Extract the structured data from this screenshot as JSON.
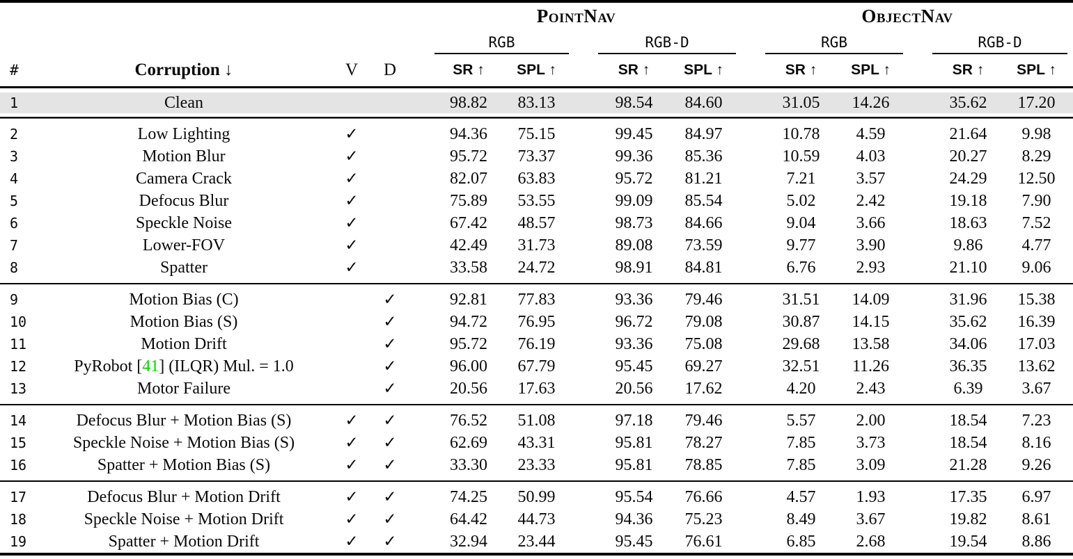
{
  "table": {
    "title_groups": [
      {
        "label": "PointNav",
        "subgroups": [
          {
            "label": "RGB"
          },
          {
            "label": "RGB-D"
          }
        ]
      },
      {
        "label": "ObjectNav",
        "subgroups": [
          {
            "label": "RGB"
          },
          {
            "label": "RGB-D"
          }
        ]
      }
    ],
    "header": {
      "num": "#",
      "corruption": "Corruption ↓",
      "visual": "V",
      "dynamics": "D",
      "metric_sr": "SR ↑",
      "metric_spl": "SPL ↑"
    },
    "check_glyph": "✓",
    "highlight_color": "#e4e4e4",
    "citation_color": "#00d500",
    "sections": [
      {
        "rows": [
          {
            "num": "1",
            "label": "Clean",
            "v": false,
            "d": false,
            "highlight": true,
            "values": [
              "98.82",
              "83.13",
              "98.54",
              "84.60",
              "31.05",
              "14.26",
              "35.62",
              "17.20"
            ]
          }
        ]
      },
      {
        "rows": [
          {
            "num": "2",
            "label": "Low Lighting",
            "v": true,
            "d": false,
            "values": [
              "94.36",
              "75.15",
              "99.45",
              "84.97",
              "10.78",
              "4.59",
              "21.64",
              "9.98"
            ]
          },
          {
            "num": "3",
            "label": "Motion Blur",
            "v": true,
            "d": false,
            "values": [
              "95.72",
              "73.37",
              "99.36",
              "85.36",
              "10.59",
              "4.03",
              "20.27",
              "8.29"
            ]
          },
          {
            "num": "4",
            "label": "Camera Crack",
            "v": true,
            "d": false,
            "values": [
              "82.07",
              "63.83",
              "95.72",
              "81.21",
              "7.21",
              "3.57",
              "24.29",
              "12.50"
            ]
          },
          {
            "num": "5",
            "label": "Defocus Blur",
            "v": true,
            "d": false,
            "values": [
              "75.89",
              "53.55",
              "99.09",
              "85.54",
              "5.02",
              "2.42",
              "19.18",
              "7.90"
            ]
          },
          {
            "num": "6",
            "label": "Speckle Noise",
            "v": true,
            "d": false,
            "values": [
              "67.42",
              "48.57",
              "98.73",
              "84.66",
              "9.04",
              "3.66",
              "18.63",
              "7.52"
            ]
          },
          {
            "num": "7",
            "label": "Lower-FOV",
            "v": true,
            "d": false,
            "values": [
              "42.49",
              "31.73",
              "89.08",
              "73.59",
              "9.77",
              "3.90",
              "9.86",
              "4.77"
            ]
          },
          {
            "num": "8",
            "label": "Spatter",
            "v": true,
            "d": false,
            "values": [
              "33.58",
              "24.72",
              "98.91",
              "84.81",
              "6.76",
              "2.93",
              "21.10",
              "9.06"
            ]
          }
        ]
      },
      {
        "rows": [
          {
            "num": "9",
            "label": "Motion Bias (C)",
            "v": false,
            "d": true,
            "values": [
              "92.81",
              "77.83",
              "93.36",
              "79.46",
              "31.51",
              "14.09",
              "31.96",
              "15.38"
            ]
          },
          {
            "num": "10",
            "label": "Motion Bias (S)",
            "v": false,
            "d": true,
            "values": [
              "94.72",
              "76.95",
              "96.72",
              "79.08",
              "30.87",
              "14.15",
              "35.62",
              "16.39"
            ]
          },
          {
            "num": "11",
            "label": "Motion Drift",
            "v": false,
            "d": true,
            "values": [
              "95.72",
              "76.19",
              "93.36",
              "75.08",
              "29.68",
              "13.58",
              "34.06",
              "17.03"
            ]
          },
          {
            "num": "12",
            "label": "PyRobot [41] (ILQR) Mul. = 1.0",
            "v": false,
            "d": true,
            "label_parts": [
              {
                "text": "PyRobot ["
              },
              {
                "text": "41",
                "green": true
              },
              {
                "text": "] (ILQR) Mul. = 1.0"
              }
            ],
            "values": [
              "96.00",
              "67.79",
              "95.45",
              "69.27",
              "32.51",
              "11.26",
              "36.35",
              "13.62"
            ]
          },
          {
            "num": "13",
            "label": "Motor Failure",
            "v": false,
            "d": true,
            "values": [
              "20.56",
              "17.63",
              "20.56",
              "17.62",
              "4.20",
              "2.43",
              "6.39",
              "3.67"
            ]
          }
        ]
      },
      {
        "rows": [
          {
            "num": "14",
            "label": "Defocus Blur + Motion Bias (S)",
            "v": true,
            "d": true,
            "values": [
              "76.52",
              "51.08",
              "97.18",
              "79.46",
              "5.57",
              "2.00",
              "18.54",
              "7.23"
            ]
          },
          {
            "num": "15",
            "label": "Speckle Noise + Motion Bias (S)",
            "v": true,
            "d": true,
            "values": [
              "62.69",
              "43.31",
              "95.81",
              "78.27",
              "7.85",
              "3.73",
              "18.54",
              "8.16"
            ]
          },
          {
            "num": "16",
            "label": "Spatter + Motion Bias (S)",
            "v": true,
            "d": true,
            "values": [
              "33.30",
              "23.33",
              "95.81",
              "78.85",
              "7.85",
              "3.09",
              "21.28",
              "9.26"
            ]
          }
        ]
      },
      {
        "rows": [
          {
            "num": "17",
            "label": "Defocus Blur + Motion Drift",
            "v": true,
            "d": true,
            "values": [
              "74.25",
              "50.99",
              "95.54",
              "76.66",
              "4.57",
              "1.93",
              "17.35",
              "6.97"
            ]
          },
          {
            "num": "18",
            "label": "Speckle Noise + Motion Drift",
            "v": true,
            "d": true,
            "values": [
              "64.42",
              "44.73",
              "94.36",
              "75.23",
              "8.49",
              "3.67",
              "19.82",
              "8.61"
            ]
          },
          {
            "num": "19",
            "label": "Spatter + Motion Drift",
            "v": true,
            "d": true,
            "values": [
              "32.94",
              "23.44",
              "95.45",
              "76.61",
              "6.85",
              "2.68",
              "19.54",
              "8.86"
            ]
          }
        ]
      }
    ]
  }
}
